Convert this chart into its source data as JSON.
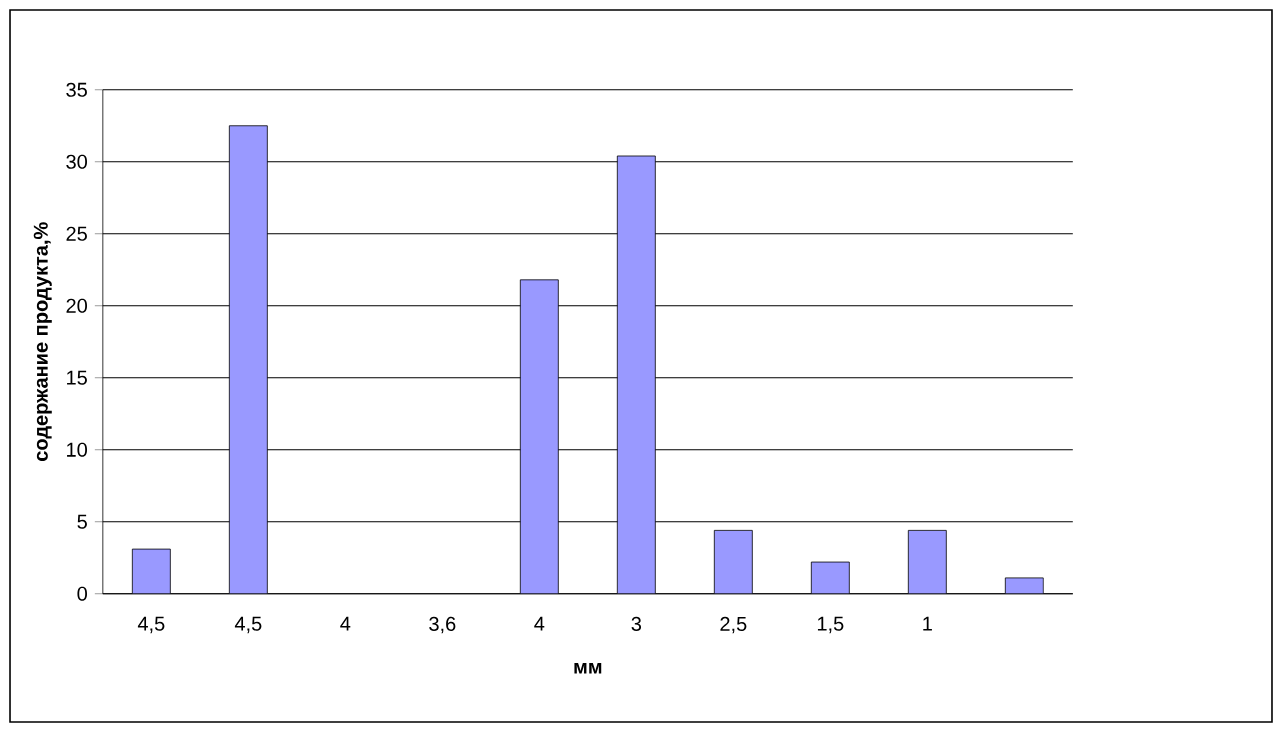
{
  "chart_data": {
    "type": "bar",
    "ylabel": "содержание продукта,%",
    "xlabel": "мм",
    "categories": [
      "4,5",
      "4,5",
      "4",
      "3,6",
      "4",
      "3",
      "2,5",
      "1,5",
      "1",
      null
    ],
    "values": [
      3.1,
      32.5,
      null,
      null,
      21.8,
      30.4,
      4.4,
      2.2,
      4.4,
      1.1
    ],
    "color": "#9999ff",
    "ylim": [
      0,
      35
    ],
    "yticks": [
      0,
      5,
      10,
      15,
      20,
      25,
      30,
      35
    ],
    "grid": "y"
  }
}
